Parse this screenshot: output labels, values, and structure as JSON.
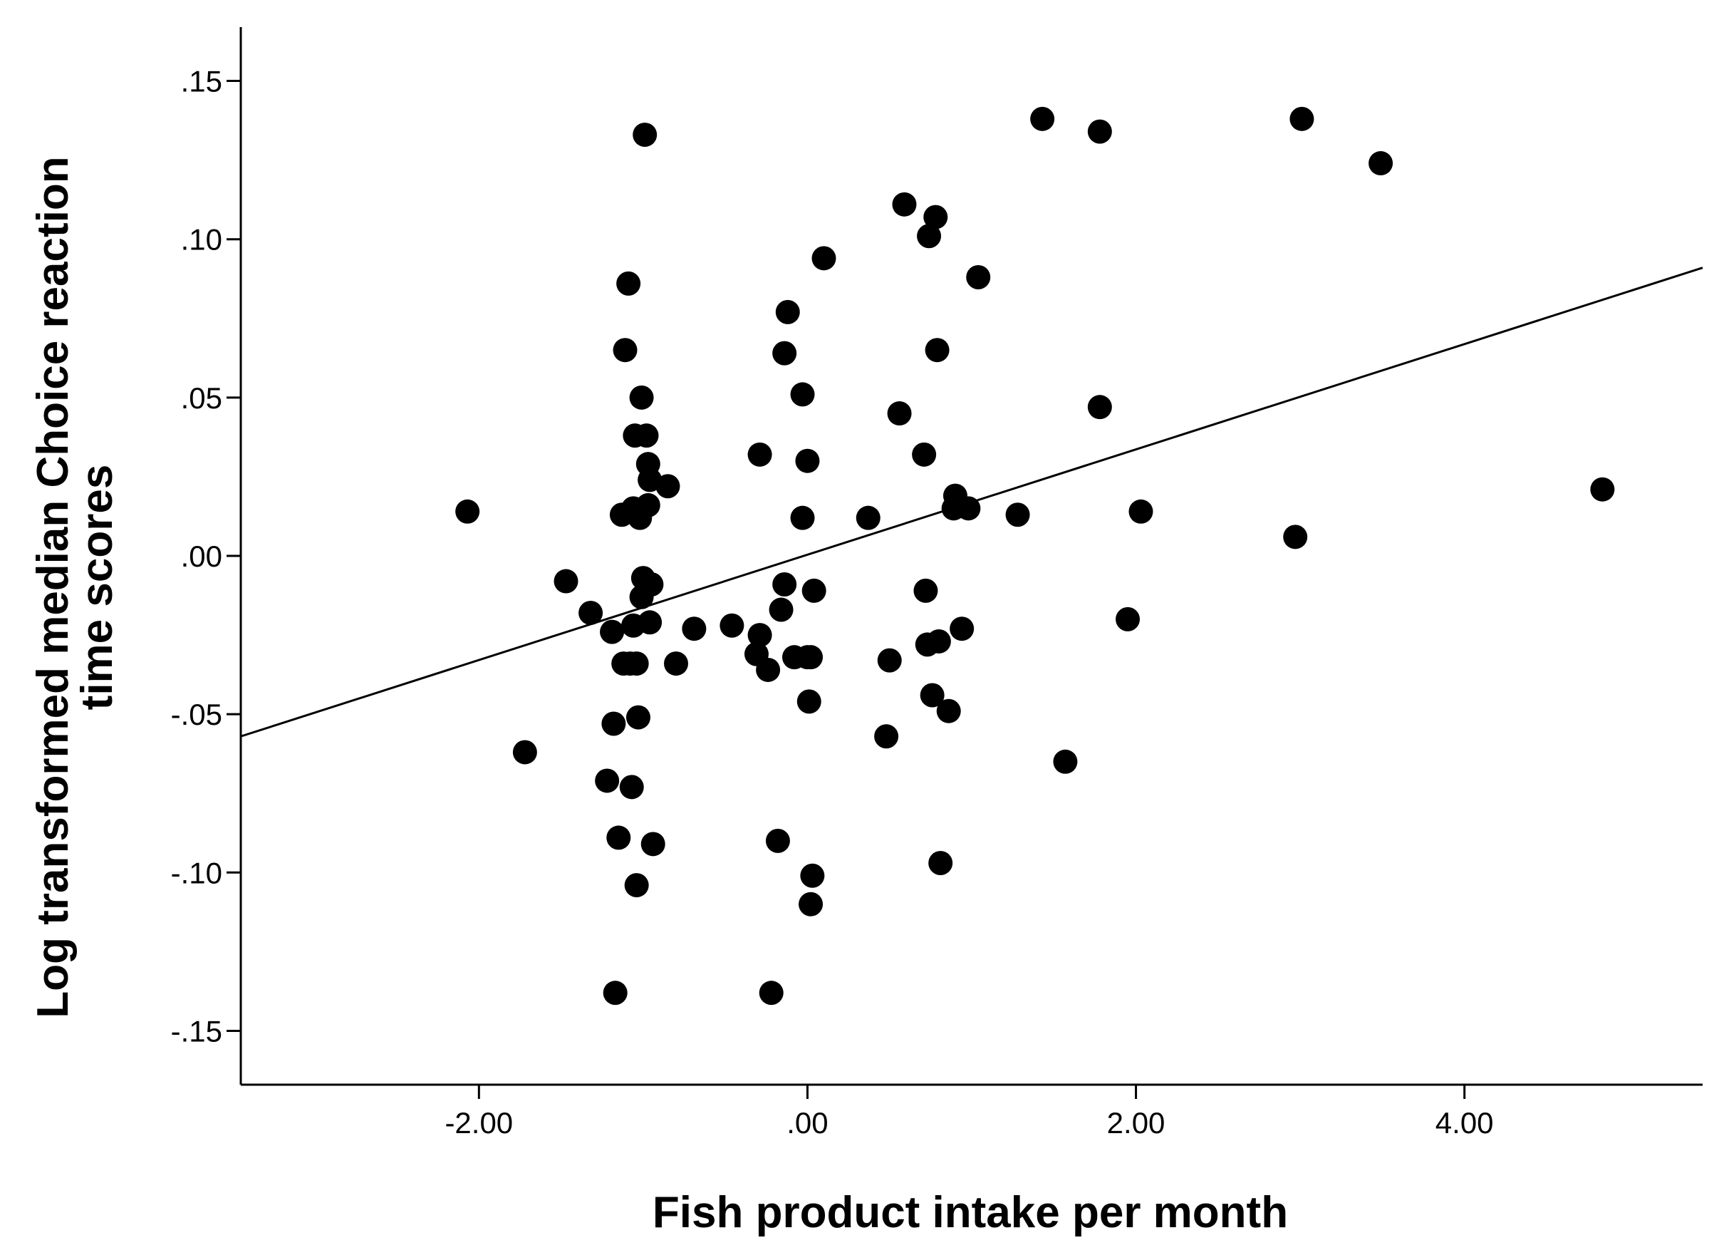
{
  "chart_data": {
    "type": "scatter",
    "title": "",
    "xlabel": "Fish product intake per month",
    "ylabel_lines": [
      "Log transformed median Choice reaction",
      "time scores"
    ],
    "xlim": [
      -3.45,
      5.45
    ],
    "ylim": [
      -0.167,
      0.167
    ],
    "x_ticks": [
      -2,
      0,
      2,
      4
    ],
    "x_tick_labels": [
      "-2.00",
      ".00",
      "2.00",
      "4.00"
    ],
    "y_ticks": [
      0.15,
      0.1,
      0.05,
      0.0,
      -0.05,
      -0.1,
      -0.15
    ],
    "y_tick_labels": [
      ".15",
      ".10",
      ".05",
      ".00",
      "-.05",
      "-.10",
      "-.15"
    ],
    "grid": false,
    "marker_color": "#000000",
    "fit_line": {
      "type": "linear",
      "points": [
        [
          -3.45,
          -0.057
        ],
        [
          5.45,
          0.091
        ]
      ]
    },
    "points": [
      [
        -2.07,
        0.014
      ],
      [
        -1.72,
        -0.062
      ],
      [
        -1.47,
        -0.008
      ],
      [
        -1.32,
        -0.018
      ],
      [
        -1.22,
        -0.071
      ],
      [
        -1.19,
        -0.024
      ],
      [
        -1.18,
        -0.053
      ],
      [
        -1.17,
        -0.138
      ],
      [
        -1.15,
        -0.089
      ],
      [
        -1.13,
        0.013
      ],
      [
        -1.12,
        -0.034
      ],
      [
        -1.11,
        0.065
      ],
      [
        -1.09,
        0.086
      ],
      [
        -1.08,
        -0.034
      ],
      [
        -1.07,
        -0.073
      ],
      [
        -1.06,
        0.015
      ],
      [
        -1.06,
        -0.022
      ],
      [
        -1.05,
        0.038
      ],
      [
        -1.04,
        -0.104
      ],
      [
        -1.04,
        -0.034
      ],
      [
        -1.03,
        -0.051
      ],
      [
        -1.02,
        0.012
      ],
      [
        -1.01,
        0.05
      ],
      [
        -1.01,
        -0.013
      ],
      [
        -1.0,
        -0.007
      ],
      [
        -0.99,
        0.133
      ],
      [
        -0.98,
        0.038
      ],
      [
        -0.97,
        0.016
      ],
      [
        -0.97,
        0.029
      ],
      [
        -0.96,
        0.024
      ],
      [
        -0.96,
        -0.021
      ],
      [
        -0.95,
        -0.009
      ],
      [
        -0.94,
        -0.091
      ],
      [
        -0.85,
        0.022
      ],
      [
        -0.8,
        -0.034
      ],
      [
        -0.69,
        -0.023
      ],
      [
        -0.46,
        -0.022
      ],
      [
        -0.29,
        0.032
      ],
      [
        -0.29,
        -0.025
      ],
      [
        -0.31,
        -0.031
      ],
      [
        -0.24,
        -0.036
      ],
      [
        -0.22,
        -0.138
      ],
      [
        -0.18,
        -0.09
      ],
      [
        -0.16,
        -0.017
      ],
      [
        -0.14,
        0.064
      ],
      [
        -0.14,
        -0.009
      ],
      [
        -0.12,
        0.077
      ],
      [
        -0.08,
        -0.032
      ],
      [
        -0.03,
        0.051
      ],
      [
        -0.03,
        0.012
      ],
      [
        0.0,
        0.03
      ],
      [
        0.0,
        -0.032
      ],
      [
        0.01,
        -0.046
      ],
      [
        0.02,
        -0.032
      ],
      [
        0.02,
        -0.11
      ],
      [
        0.03,
        -0.101
      ],
      [
        0.04,
        -0.011
      ],
      [
        0.1,
        0.094
      ],
      [
        0.37,
        0.012
      ],
      [
        0.48,
        -0.057
      ],
      [
        0.5,
        -0.033
      ],
      [
        0.56,
        0.045
      ],
      [
        0.59,
        0.111
      ],
      [
        0.71,
        0.032
      ],
      [
        0.72,
        -0.011
      ],
      [
        0.73,
        -0.028
      ],
      [
        0.74,
        0.101
      ],
      [
        0.76,
        -0.044
      ],
      [
        0.78,
        0.107
      ],
      [
        0.79,
        0.065
      ],
      [
        0.8,
        -0.027
      ],
      [
        0.81,
        -0.097
      ],
      [
        0.86,
        -0.049
      ],
      [
        0.89,
        0.015
      ],
      [
        0.9,
        0.019
      ],
      [
        0.94,
        -0.023
      ],
      [
        0.98,
        0.015
      ],
      [
        1.04,
        0.088
      ],
      [
        1.28,
        0.013
      ],
      [
        1.43,
        0.138
      ],
      [
        1.57,
        -0.065
      ],
      [
        1.78,
        0.134
      ],
      [
        1.78,
        0.047
      ],
      [
        1.95,
        -0.02
      ],
      [
        2.03,
        0.014
      ],
      [
        2.97,
        0.006
      ],
      [
        3.01,
        0.138
      ],
      [
        3.49,
        0.124
      ],
      [
        4.84,
        0.021
      ]
    ]
  }
}
